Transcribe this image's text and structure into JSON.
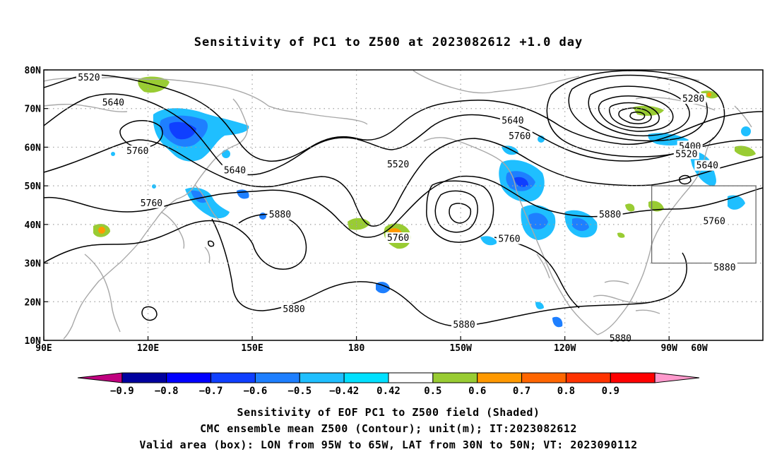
{
  "title": "Sensitivity of PC1 to Z500 at 2023082612 +1.0 day",
  "colors": {
    "frame": "#000000",
    "grid": "#a0a0a0",
    "coast": "#a8a8a8",
    "contour": "#000000",
    "box": "#6a6a6a"
  },
  "map": {
    "lon_range": [
      90,
      297
    ],
    "lat_range": [
      10,
      80
    ],
    "lon_ticks": [
      {
        "lon": 90,
        "label": "90E"
      },
      {
        "lon": 120,
        "label": "120E"
      },
      {
        "lon": 150,
        "label": "150E"
      },
      {
        "lon": 180,
        "label": "180"
      },
      {
        "lon": 210,
        "label": "150W"
      },
      {
        "lon": 240,
        "label": "120W"
      },
      {
        "lon": 270,
        "label": "90W"
      },
      {
        "lon": 300,
        "label": "60W"
      }
    ],
    "lat_ticks": [
      {
        "lat": 80,
        "label": "80N"
      },
      {
        "lat": 70,
        "label": "70N"
      },
      {
        "lat": 60,
        "label": "60N"
      },
      {
        "lat": 50,
        "label": "50N"
      },
      {
        "lat": 40,
        "label": "40N"
      },
      {
        "lat": 30,
        "label": "30N"
      },
      {
        "lat": 20,
        "label": "20N"
      },
      {
        "lat": 10,
        "label": "10N"
      }
    ],
    "valid_box": {
      "lon_min": 265,
      "lon_max": 295,
      "lat_min": 30,
      "lat_max": 50
    },
    "contour_labels": [
      {
        "text": "5520",
        "lon": 103,
        "lat": 78
      },
      {
        "text": "5640",
        "lon": 110,
        "lat": 71.5
      },
      {
        "text": "5760",
        "lon": 117,
        "lat": 59
      },
      {
        "text": "5640",
        "lon": 145,
        "lat": 54
      },
      {
        "text": "5760",
        "lon": 121,
        "lat": 45.5
      },
      {
        "text": "5880",
        "lon": 158,
        "lat": 42.5
      },
      {
        "text": "5880",
        "lon": 162,
        "lat": 18
      },
      {
        "text": "5520",
        "lon": 192,
        "lat": 55.5
      },
      {
        "text": "5760",
        "lon": 192,
        "lat": 36.5
      },
      {
        "text": "5640",
        "lon": 225,
        "lat": 66.8
      },
      {
        "text": "5760",
        "lon": 227,
        "lat": 62.8
      },
      {
        "text": "5760",
        "lon": 224,
        "lat": 36.2
      },
      {
        "text": "5880",
        "lon": 211,
        "lat": 14
      },
      {
        "text": "5880",
        "lon": 253,
        "lat": 42.5
      },
      {
        "text": "5880",
        "lon": 256,
        "lat": 10.5
      },
      {
        "text": "5280",
        "lon": 277,
        "lat": 72.5
      },
      {
        "text": "5400",
        "lon": 276,
        "lat": 60.2
      },
      {
        "text": "5520",
        "lon": 275,
        "lat": 58.2
      },
      {
        "text": "5640",
        "lon": 281,
        "lat": 55.2
      },
      {
        "text": "5760",
        "lon": 283,
        "lat": 40.8
      },
      {
        "text": "5880",
        "lon": 286,
        "lat": 28.8
      }
    ]
  },
  "colorbar": {
    "colors": [
      "#c0007f",
      "#00009f",
      "#0000ff",
      "#0f3fff",
      "#1e7fff",
      "#1fbfff",
      "#00e0ff",
      "#ffffff",
      "#99cc33",
      "#ff9900",
      "#ff6600",
      "#ff3300",
      "#ff0000",
      "#ff99cc"
    ],
    "labels": [
      "-0.9",
      "-0.8",
      "-0.7",
      "-0.6",
      "-0.5",
      "-0.42",
      "0.42",
      "0.5",
      "0.6",
      "0.7",
      "0.8",
      "0.9"
    ]
  },
  "captions": {
    "line1": "Sensitivity of EOF PC1 to Z500 field (Shaded)",
    "line2": "CMC ensemble mean Z500 (Contour); unit(m); IT:2023082612",
    "line3": "Valid area (box): LON from 95W to 65W, LAT from 30N to 50N; VT: 2023090112"
  }
}
